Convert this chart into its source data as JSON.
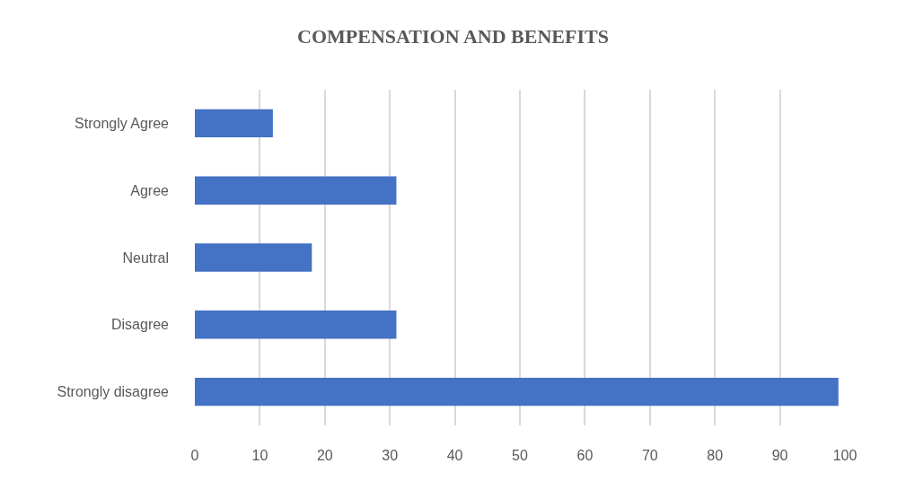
{
  "chart_data": {
    "type": "bar",
    "title": "COMPENSATION AND BENEFITS",
    "orientation": "horizontal",
    "categories": [
      "Strongly Agree",
      "Agree",
      "Neutral",
      "Disagree",
      "Strongly disagree"
    ],
    "values": [
      12,
      31,
      18,
      31,
      99
    ],
    "color": "#4472c4",
    "xlim": [
      0,
      100
    ],
    "xticks": [
      0,
      10,
      20,
      30,
      40,
      50,
      60,
      70,
      80,
      90,
      100
    ],
    "grid": "x"
  }
}
